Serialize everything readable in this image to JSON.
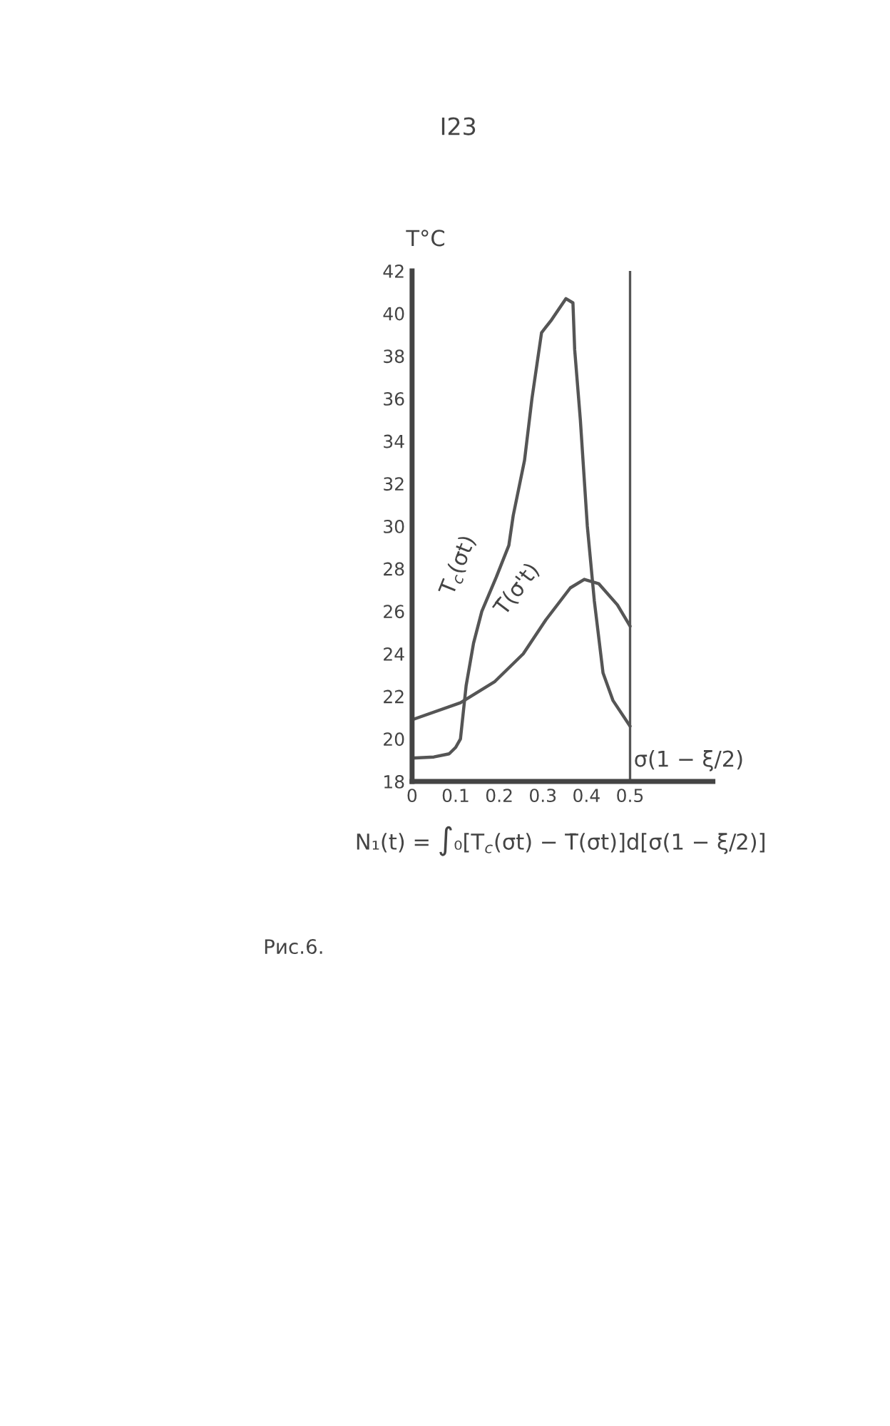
{
  "chart_data": {
    "type": "line",
    "ylabel": "T°C",
    "xlabel": "σ(1 − ξ/2)",
    "xlim": [
      0,
      0.69
    ],
    "xticks": [
      0,
      0.1,
      0.2,
      0.3,
      0.4,
      0.5
    ],
    "ylim": [
      18,
      42
    ],
    "yticks": [
      18,
      20,
      22,
      24,
      26,
      28,
      30,
      32,
      34,
      36,
      38,
      40,
      42
    ],
    "grid": false,
    "legend": false,
    "marker": "none",
    "line_style": "solid",
    "ref_lines": [
      {
        "axis": "x",
        "value": 0.5,
        "color": "#555555",
        "line_style": "solid"
      }
    ],
    "series": [
      {
        "name": "T$_{c}$(σt)",
        "color": "#555555",
        "x": [
          0,
          0.05,
          0.085,
          0.1,
          0.111,
          0.124,
          0.141,
          0.16,
          0.193,
          0.222,
          0.232,
          0.258,
          0.275,
          0.297,
          0.32,
          0.353,
          0.369,
          0.373,
          0.386,
          0.402,
          0.418,
          0.438,
          0.461,
          0.5
        ],
        "values": [
          19.1,
          19.15,
          19.3,
          19.6,
          20,
          22.5,
          24.5,
          26,
          27.6,
          29.1,
          30.5,
          33.1,
          36,
          39.1,
          39.7,
          40.7,
          40.5,
          38.3,
          35,
          30,
          26.5,
          23.1,
          21.8,
          20.6
        ]
      },
      {
        "name": "T̄(σ't)",
        "color": "#555555",
        "x": [
          0,
          0.111,
          0.19,
          0.255,
          0.307,
          0.363,
          0.395,
          0.428,
          0.471,
          0.5
        ],
        "values": [
          20.9,
          21.7,
          22.7,
          24,
          25.6,
          27.1,
          27.5,
          27.3,
          26.3,
          25.3
        ]
      }
    ],
    "annotations": [
      "I23",
      "N₁(t) = ∫₀[T$_{c}$(σt) − T̄(σt)]d[σ(1 − ξ/2)]",
      "Рис.6."
    ]
  }
}
